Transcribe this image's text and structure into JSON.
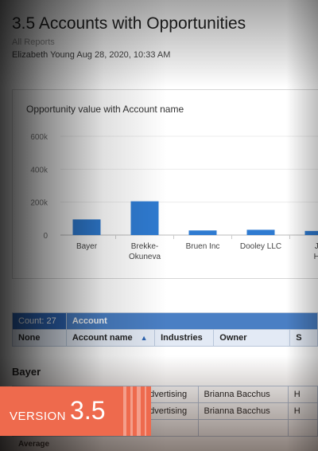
{
  "report": {
    "title": "3.5 Accounts with Opportunities",
    "breadcrumb": "All Reports",
    "author_line": "Elizabeth Young Aug 28, 2020, 10:33 AM"
  },
  "chart_data": {
    "type": "bar",
    "title": "Opportunity value with Account name",
    "categories": [
      "Bayer",
      "Brekke-Okuneva",
      "Bruen Inc",
      "Dooley LLC",
      "Je Ha"
    ],
    "category_labels": [
      [
        "Bayer"
      ],
      [
        "Brekke-",
        "Okuneva"
      ],
      [
        "Bruen Inc"
      ],
      [
        "Dooley LLC"
      ],
      [
        "Je",
        "Ha"
      ]
    ],
    "values": [
      95000,
      205000,
      28000,
      32000,
      25000
    ],
    "yticks": [
      "0",
      "200k",
      "400k",
      "600k"
    ],
    "ylim": [
      0,
      600000
    ],
    "bar_color": "#2f7bd1",
    "grid": true
  },
  "table": {
    "count_label": "Count: 27",
    "group_header": "Account",
    "columns": [
      "None",
      "Account name",
      "Industries",
      "Owner",
      "S"
    ],
    "sort_icon": "sort-ascending-icon",
    "group_name": "Bayer",
    "rows": [
      {
        "industry": "Advertising",
        "owner": "Brianna Bacchus",
        "extra": "H"
      },
      {
        "industry": "Advertising",
        "owner": "Brianna Bacchus",
        "extra": "H"
      }
    ],
    "average_label": "Average"
  },
  "banner": {
    "word": "VERSION",
    "number": "3.5",
    "color": "#ee6a4d"
  }
}
